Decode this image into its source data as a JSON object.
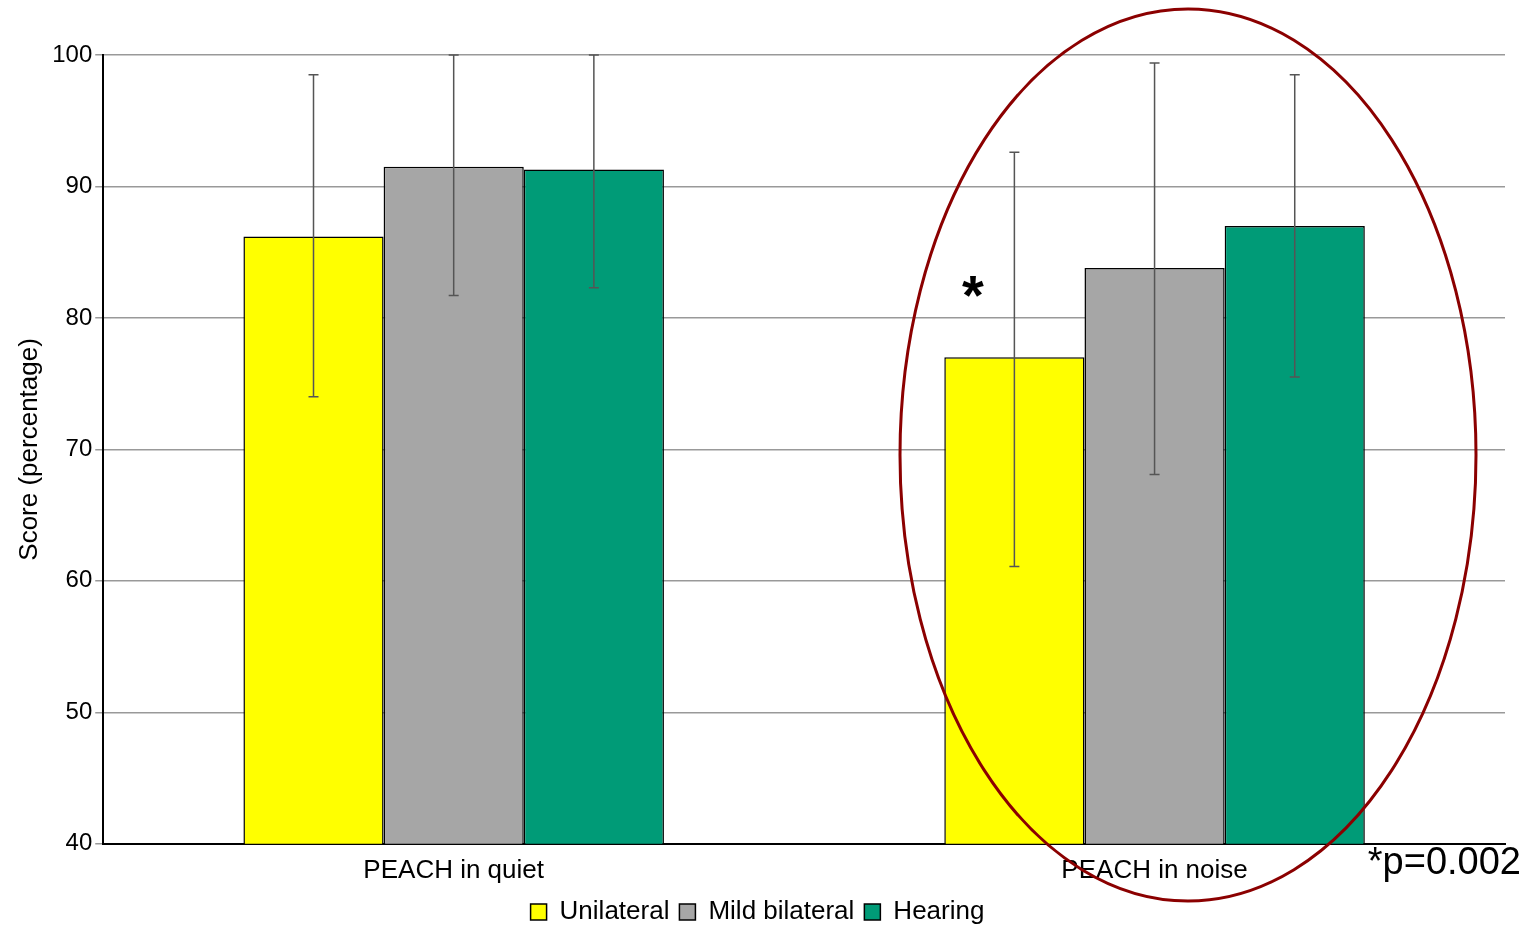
{
  "chart_data": {
    "type": "bar",
    "ylabel": "Score (percentage)",
    "categories": [
      "PEACH in quiet",
      "PEACH in noise"
    ],
    "series": [
      {
        "name": "Unilateral",
        "color": "#ffff00",
        "values": [
          86.2,
          77.0
        ],
        "errors": [
          [
            74,
            98.5
          ],
          [
            61.1,
            92.6
          ]
        ]
      },
      {
        "name": "Mild bilateral",
        "color": "#a6a6a6",
        "values": [
          91.5,
          83.8
        ],
        "errors": [
          [
            81.7,
            100
          ],
          [
            68.1,
            99.4
          ]
        ]
      },
      {
        "name": "Hearing",
        "color": "#009b77",
        "values": [
          91.3,
          87.0
        ],
        "errors": [
          [
            82.3,
            100
          ],
          [
            75.5,
            98.5
          ]
        ]
      }
    ],
    "ylim": [
      40,
      100
    ],
    "yticks": [
      40,
      50,
      60,
      70,
      80,
      90,
      100
    ],
    "grid": "y",
    "legend": "bottom",
    "annotations": [
      "*",
      "*p=0.002"
    ]
  }
}
